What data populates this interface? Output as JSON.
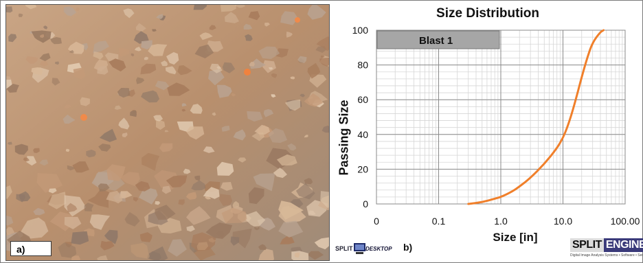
{
  "panel_a": {
    "label": "a)",
    "image_icon": "rock-muckpile-photo"
  },
  "panel_b": {
    "label": "b)",
    "logo_left": {
      "icon": "split-desktop-logo",
      "text_a": "SPLIT",
      "text_b": "DESKTOP"
    },
    "logo_right": {
      "icon": "split-engineering-logo",
      "text_a": "SPLIT",
      "text_b": "ENGINEERING",
      "tagline": "Digital Image Analysis Systems • Software • Services"
    }
  },
  "colors": {
    "curve": "#f07f2a",
    "legend_bar": "#a6a6a6",
    "grid_major": "#8a8a8a",
    "grid_minor": "#d6d6d6"
  },
  "chart_data": {
    "type": "line",
    "title": "Size Distribution",
    "xlabel": "Size [in]",
    "ylabel": "Passing Size",
    "x_scale": "log",
    "x_tick_labels": [
      "0",
      "0.1",
      "1.0",
      "10.0",
      "100.00"
    ],
    "y_ticks": [
      0,
      20,
      40,
      60,
      80,
      100
    ],
    "ylim": [
      0,
      100
    ],
    "grid": true,
    "legend_placement": "top-left",
    "series": [
      {
        "name": "Blast 1",
        "x": [
          0.3,
          0.5,
          0.8,
          1.0,
          1.5,
          2,
          3,
          5,
          8,
          10,
          12,
          15,
          20,
          25,
          30,
          40,
          45
        ],
        "y": [
          0,
          1,
          3,
          4,
          7,
          10,
          15,
          23,
          32,
          38,
          45,
          56,
          73,
          85,
          93,
          99,
          100
        ]
      }
    ]
  }
}
